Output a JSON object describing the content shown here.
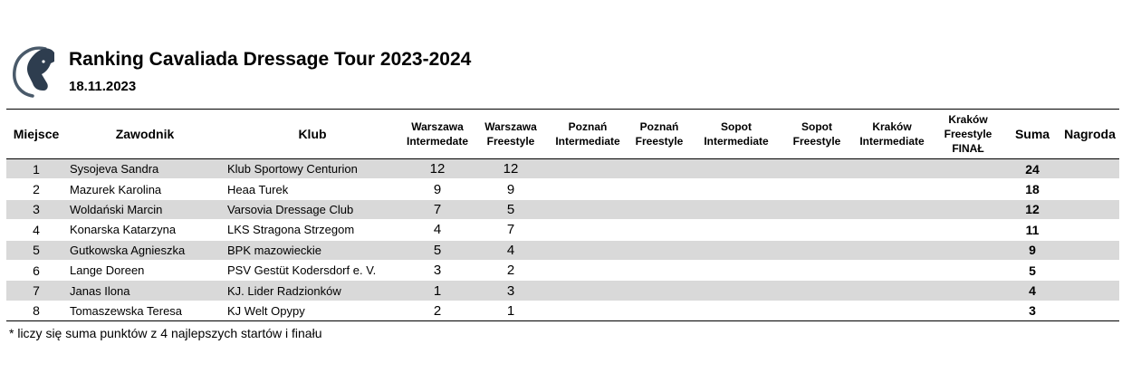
{
  "header": {
    "title": "Ranking Cavaliada Dressage Tour 2023-2024",
    "date": "18.11.2023",
    "logo_icon": "horse-head-logo-icon"
  },
  "columns": [
    {
      "key": "place",
      "label": "Miejsce"
    },
    {
      "key": "rider",
      "label": "Zawodnik"
    },
    {
      "key": "club",
      "label": "Klub"
    },
    {
      "key": "waw_inter",
      "label": "Warszawa Intermedate"
    },
    {
      "key": "waw_free",
      "label": "Warszawa Freestyle"
    },
    {
      "key": "poz_inter",
      "label": "Poznań Intermediate"
    },
    {
      "key": "poz_free",
      "label": "Poznań Freestyle"
    },
    {
      "key": "sop_inter",
      "label": "Sopot Intermediate"
    },
    {
      "key": "sop_free",
      "label": "Sopot Freestyle"
    },
    {
      "key": "krk_inter",
      "label": "Kraków Intermediate"
    },
    {
      "key": "krk_final",
      "label": "Kraków Freestyle FINAŁ"
    },
    {
      "key": "sum",
      "label": "Suma"
    },
    {
      "key": "prize",
      "label": "Nagroda"
    }
  ],
  "rows": [
    {
      "place": "1",
      "rider": "Sysojeva Sandra",
      "club": "Klub Sportowy Centurion",
      "waw_inter": "12",
      "waw_free": "12",
      "poz_inter": "",
      "poz_free": "",
      "sop_inter": "",
      "sop_free": "",
      "krk_inter": "",
      "krk_final": "",
      "sum": "24",
      "prize": ""
    },
    {
      "place": "2",
      "rider": "Mazurek Karolina",
      "club": "Heaa Turek",
      "waw_inter": "9",
      "waw_free": "9",
      "poz_inter": "",
      "poz_free": "",
      "sop_inter": "",
      "sop_free": "",
      "krk_inter": "",
      "krk_final": "",
      "sum": "18",
      "prize": ""
    },
    {
      "place": "3",
      "rider": "Woldański Marcin",
      "club": "Varsovia Dressage Club",
      "waw_inter": "7",
      "waw_free": "5",
      "poz_inter": "",
      "poz_free": "",
      "sop_inter": "",
      "sop_free": "",
      "krk_inter": "",
      "krk_final": "",
      "sum": "12",
      "prize": ""
    },
    {
      "place": "4",
      "rider": "Konarska Katarzyna",
      "club": "LKS Stragona Strzegom",
      "waw_inter": "4",
      "waw_free": "7",
      "poz_inter": "",
      "poz_free": "",
      "sop_inter": "",
      "sop_free": "",
      "krk_inter": "",
      "krk_final": "",
      "sum": "11",
      "prize": ""
    },
    {
      "place": "5",
      "rider": "Gutkowska Agnieszka",
      "club": "BPK mazowieckie",
      "waw_inter": "5",
      "waw_free": "4",
      "poz_inter": "",
      "poz_free": "",
      "sop_inter": "",
      "sop_free": "",
      "krk_inter": "",
      "krk_final": "",
      "sum": "9",
      "prize": ""
    },
    {
      "place": "6",
      "rider": "Lange Doreen",
      "club": "PSV Gestüt Kodersdorf e. V.",
      "waw_inter": "3",
      "waw_free": "2",
      "poz_inter": "",
      "poz_free": "",
      "sop_inter": "",
      "sop_free": "",
      "krk_inter": "",
      "krk_final": "",
      "sum": "5",
      "prize": ""
    },
    {
      "place": "7",
      "rider": "Janas Ilona",
      "club": "KJ. Lider Radzionków",
      "waw_inter": "1",
      "waw_free": "3",
      "poz_inter": "",
      "poz_free": "",
      "sop_inter": "",
      "sop_free": "",
      "krk_inter": "",
      "krk_final": "",
      "sum": "4",
      "prize": ""
    },
    {
      "place": "8",
      "rider": "Tomaszewska Teresa",
      "club": "KJ Welt Opypy",
      "waw_inter": "2",
      "waw_free": "1",
      "poz_inter": "",
      "poz_free": "",
      "sop_inter": "",
      "sop_free": "",
      "krk_inter": "",
      "krk_final": "",
      "sum": "3",
      "prize": ""
    }
  ],
  "shaded_rows": [
    0,
    2,
    4,
    6
  ],
  "shade_color": "#d9d9d9",
  "footnote": "* liczy się suma punktów z 4 najlepszych startów i finału"
}
